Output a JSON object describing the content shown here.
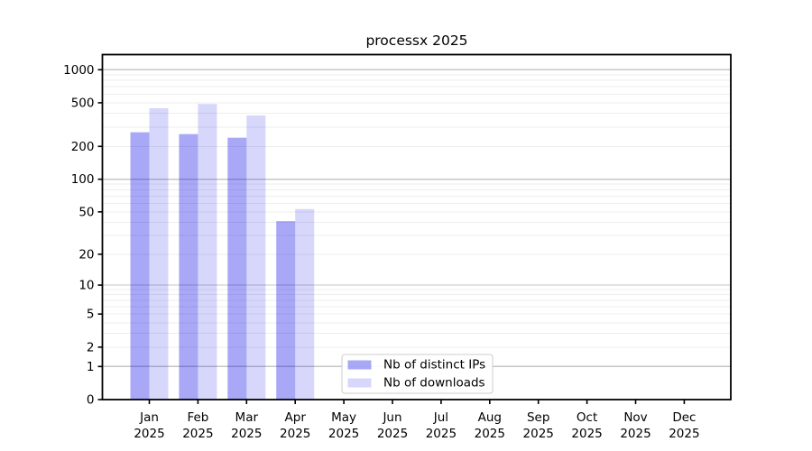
{
  "chart_data": {
    "type": "bar",
    "title": "processx 2025",
    "categories": [
      "Jan 2025",
      "Feb 2025",
      "Mar 2025",
      "Apr 2025",
      "May 2025",
      "Jun 2025",
      "Jul 2025",
      "Aug 2025",
      "Sep 2025",
      "Oct 2025",
      "Nov 2025",
      "Dec 2025"
    ],
    "series": [
      {
        "name": "Nb of distinct IPs",
        "fill": "rgba(0,0,230,0.34)",
        "hex_on_white": "#a8a8f7",
        "values": [
          269,
          259,
          240,
          41,
          0,
          0,
          0,
          0,
          0,
          0,
          0,
          0
        ]
      },
      {
        "name": "Nb of downloads",
        "fill": "rgba(0,0,230,0.155)",
        "hex_on_white": "#d8d8fb",
        "values": [
          446,
          488,
          383,
          53,
          0,
          0,
          0,
          0,
          0,
          0,
          0,
          0
        ]
      }
    ],
    "yscale": "log1p",
    "yticks": [
      0,
      1,
      2,
      5,
      10,
      20,
      50,
      100,
      200,
      500,
      1000
    ],
    "ylim": [
      0,
      1375
    ],
    "xlabel": "",
    "ylabel": "",
    "grid": true,
    "major_grid_color": "#c6c6c6",
    "minor_grid_color": "#ededed",
    "legend_position": "lower-center-inside"
  }
}
